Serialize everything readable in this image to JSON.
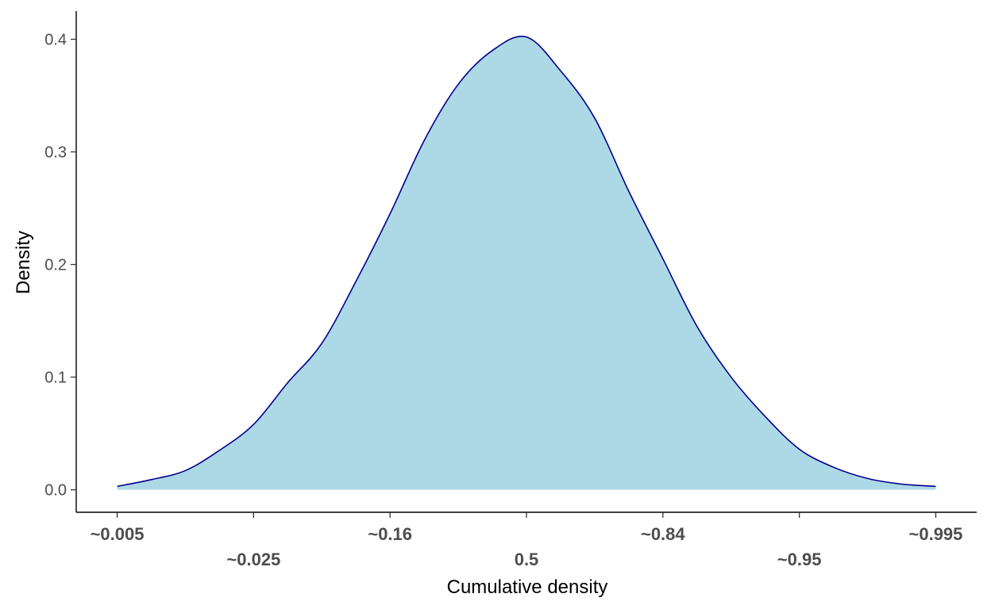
{
  "chart_data": {
    "type": "area",
    "title": "",
    "xlabel": "Cumulative density",
    "ylabel": "Density",
    "x_tick_labels": [
      "~0.005",
      "~0.025",
      "~0.16",
      "0.5",
      "~0.84",
      "~0.95",
      "~0.995"
    ],
    "x_tick_values": [
      -3,
      -2,
      -1,
      0,
      1,
      2,
      3
    ],
    "y_ticks": [
      0.0,
      0.1,
      0.2,
      0.3,
      0.4
    ],
    "y_tick_labels": [
      "0.0",
      "0.1",
      "0.2",
      "0.3",
      "0.4"
    ],
    "xlim": [
      -3.3,
      3.3
    ],
    "ylim": [
      -0.02,
      0.425
    ],
    "grid": false,
    "legend": "none",
    "series": [
      {
        "x": [
          -3.0,
          -2.75,
          -2.5,
          -2.25,
          -2.0,
          -1.75,
          -1.5,
          -1.25,
          -1.0,
          -0.75,
          -0.5,
          -0.25,
          0.0,
          0.25,
          0.5,
          0.75,
          1.0,
          1.25,
          1.5,
          1.75,
          2.0,
          2.25,
          2.5,
          2.75,
          3.0
        ],
        "y": [
          0.003,
          0.009,
          0.017,
          0.035,
          0.058,
          0.095,
          0.13,
          0.185,
          0.245,
          0.31,
          0.36,
          0.39,
          0.402,
          0.372,
          0.33,
          0.265,
          0.205,
          0.145,
          0.1,
          0.065,
          0.036,
          0.02,
          0.01,
          0.005,
          0.003
        ],
        "fill": "#add8e6",
        "line": "#00008b"
      }
    ]
  }
}
